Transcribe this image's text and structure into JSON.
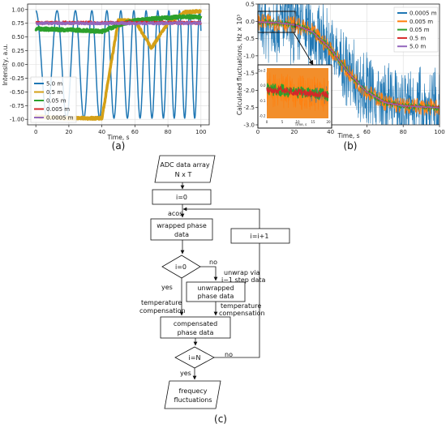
{
  "chart_data": [
    {
      "type": "line",
      "panel_label": "(a)",
      "xlabel": "Time, s",
      "ylabel": "Intensity, a.u.",
      "xlim": [
        -5,
        105
      ],
      "ylim": [
        -1.1,
        1.1
      ],
      "xticks": [
        0,
        20,
        40,
        60,
        80,
        100
      ],
      "yticks": [
        -1.0,
        -0.75,
        -0.5,
        -0.25,
        0.0,
        0.25,
        0.5,
        0.75,
        1.0
      ],
      "ytick_labels": [
        "-1.00",
        "-0.75",
        "-0.50",
        "-0.25",
        "0.00",
        "0.25",
        "0.50",
        "0.75",
        "1.00"
      ],
      "grid": true,
      "legend_position": "lower-left",
      "x": [
        0,
        10,
        20,
        30,
        40,
        50,
        60,
        70,
        80,
        90,
        100
      ],
      "series": [
        {
          "name": "5.0 m",
          "color": "#1f77b4",
          "values": [
            1.0,
            -0.7,
            -0.9,
            0.95,
            -0.5,
            0.2,
            -0.8,
            0.9,
            -0.6,
            0.7,
            -0.3
          ]
        },
        {
          "name": "0.5 m",
          "color": "#d4a017",
          "values": [
            -0.95,
            -0.97,
            -0.98,
            -0.98,
            -0.98,
            0.8,
            0.8,
            0.3,
            0.75,
            0.95,
            0.97
          ]
        },
        {
          "name": "0.05 m",
          "color": "#2ca02c",
          "values": [
            0.65,
            0.64,
            0.63,
            0.62,
            0.6,
            0.72,
            0.8,
            0.83,
            0.85,
            0.87,
            0.86
          ]
        },
        {
          "name": "0.005 m",
          "color": "#d62728",
          "values": [
            0.76,
            0.76,
            0.76,
            0.76,
            0.76,
            0.76,
            0.76,
            0.76,
            0.76,
            0.76,
            0.76
          ]
        },
        {
          "name": "0.0005 m",
          "color": "#9467bd",
          "values": [
            0.75,
            0.75,
            0.75,
            0.75,
            0.75,
            0.75,
            0.75,
            0.75,
            0.75,
            0.75,
            0.75
          ]
        }
      ]
    },
    {
      "type": "line",
      "panel_label": "(b)",
      "xlabel": "Time, s",
      "ylabel": "Calculated fluctuations, Hz × 10³",
      "xlim": [
        0,
        100
      ],
      "ylim": [
        -3.0,
        0.5
      ],
      "xticks": [
        0,
        20,
        40,
        60,
        80,
        100
      ],
      "yticks": [
        0.5,
        0.0,
        -0.5,
        -1.0,
        -1.5,
        -2.0,
        -2.5,
        -3.0
      ],
      "ytick_labels": [
        "0.5",
        "0.0",
        "-0.5",
        "-1.0",
        "-1.5",
        "-2.0",
        "-2.5",
        "-3.0"
      ],
      "grid": true,
      "legend_position": "right",
      "x": [
        0,
        10,
        20,
        30,
        40,
        50,
        60,
        70,
        80,
        90,
        100
      ],
      "series": [
        {
          "name": "0.0005 m",
          "color": "#1f77b4",
          "values": [
            -0.02,
            -0.04,
            -0.1,
            -0.3,
            -0.8,
            -1.5,
            -2.05,
            -2.35,
            -2.45,
            -2.48,
            -2.5
          ]
        },
        {
          "name": "0.005 m",
          "color": "#ff7f0e",
          "values": [
            -0.02,
            -0.04,
            -0.1,
            -0.3,
            -0.8,
            -1.5,
            -2.05,
            -2.35,
            -2.45,
            -2.48,
            -2.5
          ]
        },
        {
          "name": "0.05 m",
          "color": "#2ca02c",
          "values": [
            -0.02,
            -0.04,
            -0.1,
            -0.3,
            -0.8,
            -1.5,
            -2.05,
            -2.35,
            -2.45,
            -2.48,
            -2.5
          ]
        },
        {
          "name": "0.5 m",
          "color": "#d62728",
          "values": [
            -0.02,
            -0.04,
            -0.1,
            -0.3,
            -0.8,
            -1.5,
            -2.05,
            -2.35,
            -2.45,
            -2.48,
            -2.5
          ]
        },
        {
          "name": "5.0 m",
          "color": "#9467bd",
          "values": [
            -0.02,
            -0.04,
            -0.1,
            -0.3,
            -0.8,
            -1.5,
            -2.05,
            -2.35,
            -2.45,
            -2.48,
            -2.5
          ]
        }
      ],
      "inset": {
        "xticks": [
          0,
          5,
          10,
          15,
          20
        ],
        "yticks": [
          0.0,
          -0.1,
          -0.2
        ],
        "ytick_labels": [
          "1e-2",
          "0.0",
          "-0.1",
          "-0.2"
        ],
        "xlabel": "Time, s"
      }
    }
  ],
  "flowchart": {
    "label": "(c)",
    "nodes": {
      "input_line1": "ADC data array",
      "input_line2": "N x T",
      "init": "i=0",
      "wrapped_line1": "wrapped phase",
      "wrapped_line2": "data",
      "decision1": "i=0",
      "unwrapped_line1": "unwrapped",
      "unwrapped_line2": "phase data",
      "compensated_line1": "compensated",
      "compensated_line2": "phase data",
      "decision2": "i=N",
      "output_line1": "frequecy",
      "output_line2": "fluctuations",
      "increment": "i=i+1"
    },
    "edge_labels": {
      "acos": "acos",
      "no1": "no",
      "unwrap_line1": "unwrap via",
      "unwrap_line2": "i−1 step data",
      "yes1": "yes",
      "tempcomp_left_line1": "temperature",
      "tempcomp_left_line2": "compensation",
      "tempcomp_right_line1": "temperature",
      "tempcomp_right_line2": "compensation",
      "no2": "no",
      "yes2": "yes"
    }
  }
}
